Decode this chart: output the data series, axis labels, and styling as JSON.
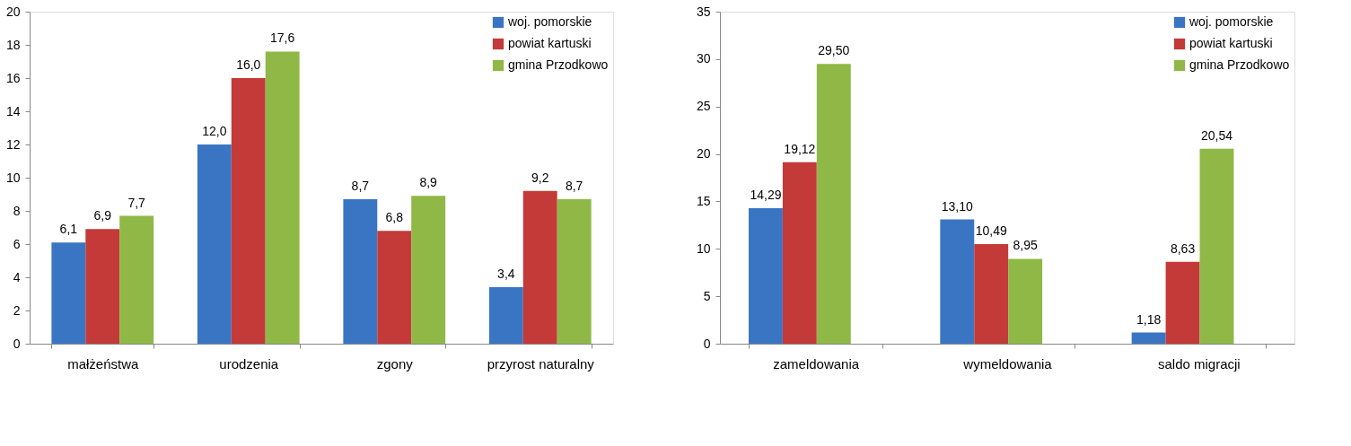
{
  "chart_data": [
    {
      "type": "bar",
      "categories": [
        "małżeństwa",
        "urodzenia",
        "zgony",
        "przyrost naturalny"
      ],
      "ylim": [
        0,
        20
      ],
      "yticks": [
        0,
        2,
        4,
        6,
        8,
        10,
        12,
        14,
        16,
        18,
        20
      ],
      "grid": false,
      "legend": "top right",
      "series": [
        {
          "name": "woj. pomorskie",
          "color": "#3a75c4",
          "values": [
            6.1,
            12.0,
            8.7,
            3.4
          ],
          "value_labels": [
            "6,1",
            "12,0",
            "8,7",
            "3,4"
          ]
        },
        {
          "name": "powiat kartuski",
          "color": "#c33a38",
          "values": [
            6.9,
            16.0,
            6.8,
            9.2
          ],
          "value_labels": [
            "6,9",
            "16,0",
            "6,8",
            "9,2"
          ]
        },
        {
          "name": "gmina Przodkowo",
          "color": "#8fb846",
          "values": [
            7.7,
            17.6,
            8.9,
            8.7
          ],
          "value_labels": [
            "7,7",
            "17,6",
            "8,9",
            "8,7"
          ]
        }
      ]
    },
    {
      "type": "bar",
      "categories": [
        "zameldowania",
        "wymeldowania",
        "saldo migracji"
      ],
      "ylim": [
        0,
        35
      ],
      "yticks": [
        0,
        5,
        10,
        15,
        20,
        25,
        30,
        35
      ],
      "grid": false,
      "legend": "top right",
      "series": [
        {
          "name": "woj. pomorskie",
          "color": "#3a75c4",
          "values": [
            14.29,
            13.1,
            1.18
          ],
          "value_labels": [
            "14,29",
            "13,10",
            "1,18"
          ]
        },
        {
          "name": "powiat kartuski",
          "color": "#c33a38",
          "values": [
            19.12,
            10.49,
            8.63
          ],
          "value_labels": [
            "19,12",
            "10,49",
            "8,63"
          ]
        },
        {
          "name": "gmina Przodkowo",
          "color": "#8fb846",
          "values": [
            29.5,
            8.95,
            20.54
          ],
          "value_labels": [
            "29,50",
            "8,95",
            "20,54"
          ]
        }
      ]
    }
  ]
}
